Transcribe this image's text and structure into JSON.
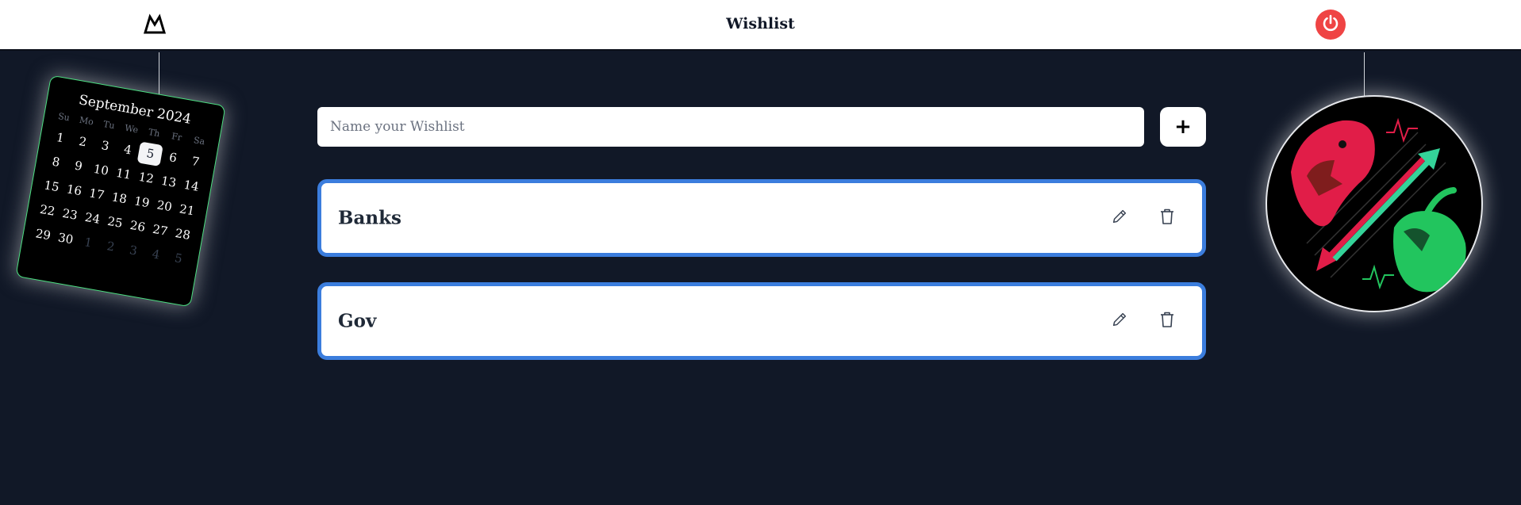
{
  "header": {
    "title": "Wishlist",
    "logo_icon": "mountain-logo-icon",
    "power_icon": "power-icon",
    "power_color": "#ef4444"
  },
  "calendar": {
    "title": "September 2024",
    "weekdays": [
      "Su",
      "Mo",
      "Tu",
      "We",
      "Th",
      "Fr",
      "Sa"
    ],
    "days": [
      "1",
      "2",
      "3",
      "4",
      "5",
      "6",
      "7",
      "8",
      "9",
      "10",
      "11",
      "12",
      "13",
      "14",
      "15",
      "16",
      "17",
      "18",
      "19",
      "20",
      "21",
      "22",
      "23",
      "24",
      "25",
      "26",
      "27",
      "28",
      "29",
      "30",
      "1",
      "2",
      "3",
      "4",
      "5"
    ],
    "today": "5",
    "accent_color": "#4ade80"
  },
  "form": {
    "placeholder": "Name your Wishlist",
    "value": "",
    "add_label": "+"
  },
  "wishlists": [
    {
      "name": "Banks"
    },
    {
      "name": "Gov"
    }
  ],
  "colors": {
    "background": "#111827",
    "card_border": "#3b7ddd",
    "bear": "#e11d48",
    "bull": "#22c55e"
  }
}
